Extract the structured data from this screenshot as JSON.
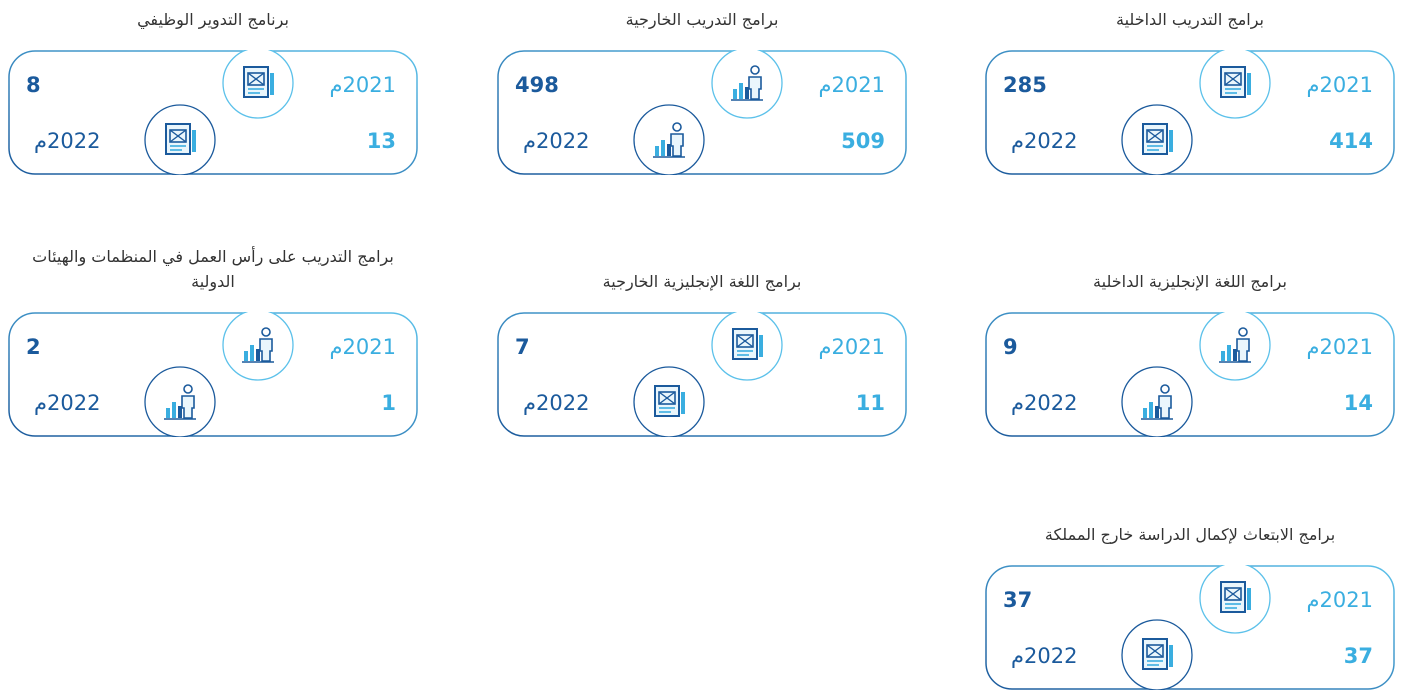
{
  "cards": [
    {
      "title": "برامج التدريب الداخلية",
      "label_2021": "2021م",
      "value_2021": 285,
      "label_2022": "2022م",
      "value_2022": 414
    },
    {
      "title": "برامج التدريب الخارجية",
      "label_2021": "2021م",
      "value_2021": 498,
      "label_2022": "2022م",
      "value_2022": 509
    },
    {
      "title": "برنامج التدوير الوظيفي",
      "label_2021": "2021م",
      "value_2021": 8,
      "label_2022": "2022م",
      "value_2022": 13
    },
    {
      "title": "برامج اللغة الإنجليزية الداخلية",
      "label_2021": "2021م",
      "value_2021": 9,
      "label_2022": "2022م",
      "value_2022": 14
    },
    {
      "title": "برامج اللغة الإنجليزية الخارجية",
      "label_2021": "2021م",
      "value_2021": 7,
      "label_2022": "2022م",
      "value_2022": 11
    },
    {
      "title": "برامج التدريب على رأس العمل في المنظمات والهيئات الدولية",
      "label_2021": "2021م",
      "value_2021": 2,
      "label_2022": "2022م",
      "value_2022": 1
    },
    {
      "title": "برامج الابتعاث لإكمال الدراسة خارج المملكة",
      "label_2021": "2021م",
      "value_2021": 37,
      "label_2022": "2022م",
      "value_2022": 37
    }
  ]
}
